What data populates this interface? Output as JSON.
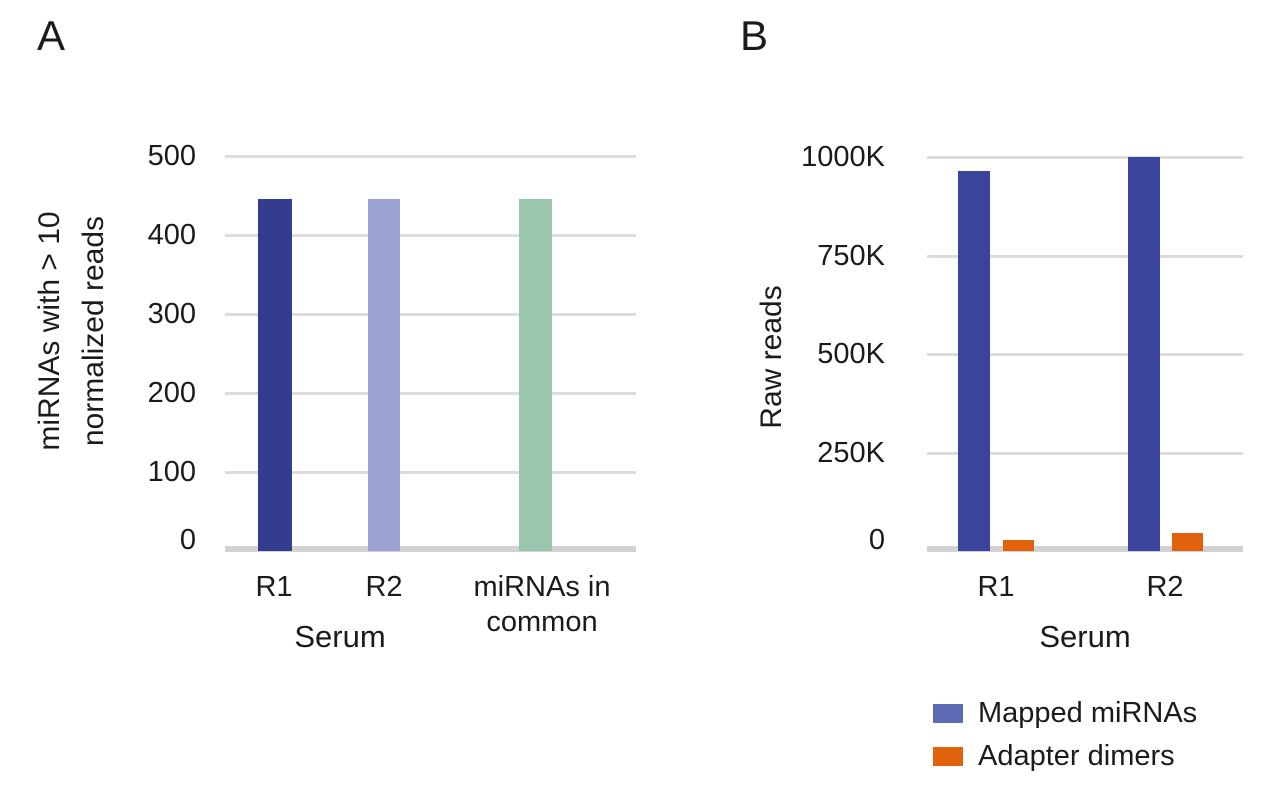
{
  "panels": [
    {
      "letter": "A",
      "ylabel_lines": [
        "miRNAs with > 10",
        "normalized reads"
      ],
      "xlabel": "Serum"
    },
    {
      "letter": "B",
      "ylabel": "Raw reads",
      "xlabel": "Serum"
    }
  ],
  "legend": {
    "items": [
      {
        "label": "Mapped miRNAs",
        "color": "#5C6BB3"
      },
      {
        "label": "Adapter dimers",
        "color": "#E2610C"
      }
    ]
  },
  "chart_data": [
    {
      "type": "bar",
      "panel": "A",
      "title": "",
      "ylabel": "miRNAs with > 10 normalized reads",
      "xlabel": "Serum",
      "categories": [
        "R1",
        "R2",
        "miRNAs in common"
      ],
      "values": [
        445,
        445,
        445
      ],
      "bar_colors": [
        "#333C8F",
        "#9AA3D1",
        "#9AC5AE"
      ],
      "ylim": [
        0,
        500
      ],
      "yticks": [
        0,
        100,
        200,
        300,
        400,
        500
      ],
      "ytick_labels": [
        "0",
        "100",
        "200",
        "300",
        "400",
        "500"
      ],
      "grid": true,
      "legend_position": "none"
    },
    {
      "type": "bar",
      "panel": "B",
      "title": "",
      "ylabel": "Raw reads",
      "xlabel": "Serum",
      "categories": [
        "R1",
        "R2"
      ],
      "series": [
        {
          "name": "Mapped miRNAs",
          "color": "#3A449C",
          "values": [
            965000,
            1000000
          ]
        },
        {
          "name": "Adapter dimers",
          "color": "#E2610C",
          "values": [
            28000,
            46000
          ]
        }
      ],
      "ylim": [
        0,
        1000000
      ],
      "yticks": [
        0,
        250000,
        500000,
        750000,
        1000000
      ],
      "ytick_labels": [
        "0",
        "250K",
        "500K",
        "750K",
        "1000K"
      ],
      "grid": true,
      "legend_position": "bottom"
    }
  ]
}
